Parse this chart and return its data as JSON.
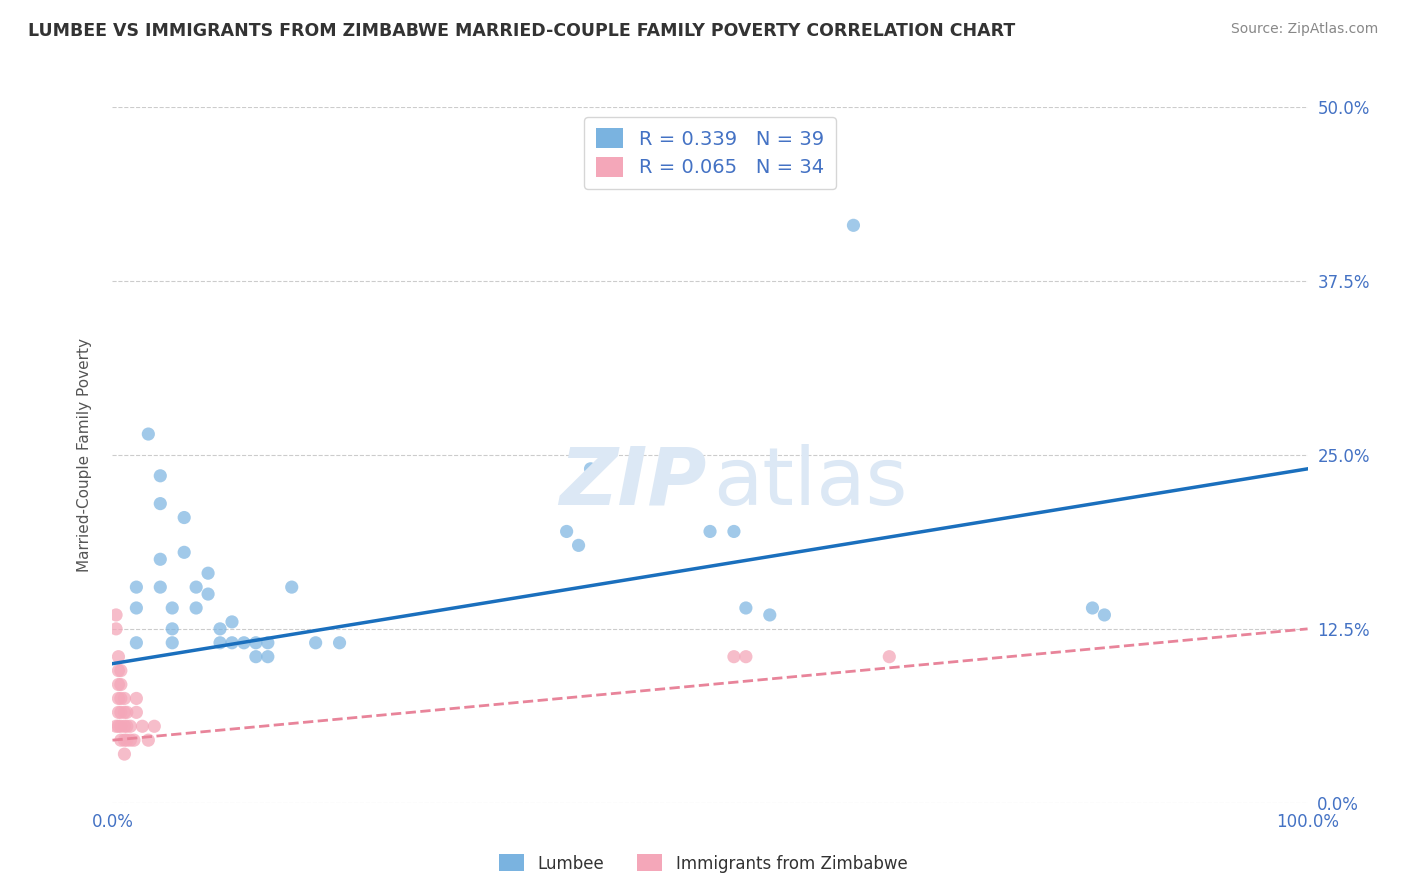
{
  "title": "LUMBEE VS IMMIGRANTS FROM ZIMBABWE MARRIED-COUPLE FAMILY POVERTY CORRELATION CHART",
  "source_text": "Source: ZipAtlas.com",
  "ylabel": "Married-Couple Family Poverty",
  "xlim": [
    0,
    1.0
  ],
  "ylim": [
    0,
    0.5
  ],
  "xticks": [
    0.0,
    0.25,
    0.5,
    0.75,
    1.0
  ],
  "xtick_labels": [
    "0.0%",
    "",
    "",
    "",
    "100.0%"
  ],
  "ytick_labels": [
    "0.0%",
    "12.5%",
    "25.0%",
    "37.5%",
    "50.0%"
  ],
  "yticks": [
    0.0,
    0.125,
    0.25,
    0.375,
    0.5
  ],
  "grid_color": "#cccccc",
  "lumbee_color": "#7ab3e0",
  "zimbabwe_color": "#f4a7b9",
  "lumbee_line_color": "#1a6fbd",
  "zimbabwe_line_color": "#e8849a",
  "lumbee_R": 0.339,
  "lumbee_N": 39,
  "zimbabwe_R": 0.065,
  "zimbabwe_N": 34,
  "lumbee_scatter": [
    [
      0.02,
      0.155
    ],
    [
      0.02,
      0.14
    ],
    [
      0.03,
      0.265
    ],
    [
      0.04,
      0.235
    ],
    [
      0.04,
      0.215
    ],
    [
      0.04,
      0.175
    ],
    [
      0.04,
      0.155
    ],
    [
      0.05,
      0.14
    ],
    [
      0.05,
      0.125
    ],
    [
      0.05,
      0.115
    ],
    [
      0.06,
      0.205
    ],
    [
      0.06,
      0.18
    ],
    [
      0.07,
      0.155
    ],
    [
      0.07,
      0.14
    ],
    [
      0.08,
      0.165
    ],
    [
      0.08,
      0.15
    ],
    [
      0.09,
      0.125
    ],
    [
      0.09,
      0.115
    ],
    [
      0.1,
      0.13
    ],
    [
      0.1,
      0.115
    ],
    [
      0.11,
      0.115
    ],
    [
      0.12,
      0.115
    ],
    [
      0.12,
      0.105
    ],
    [
      0.13,
      0.115
    ],
    [
      0.13,
      0.105
    ],
    [
      0.15,
      0.155
    ],
    [
      0.17,
      0.115
    ],
    [
      0.19,
      0.115
    ],
    [
      0.38,
      0.195
    ],
    [
      0.39,
      0.185
    ],
    [
      0.4,
      0.24
    ],
    [
      0.5,
      0.195
    ],
    [
      0.52,
      0.195
    ],
    [
      0.53,
      0.14
    ],
    [
      0.55,
      0.135
    ],
    [
      0.62,
      0.415
    ],
    [
      0.82,
      0.14
    ],
    [
      0.83,
      0.135
    ],
    [
      0.02,
      0.115
    ]
  ],
  "zimbabwe_scatter": [
    [
      0.003,
      0.135
    ],
    [
      0.003,
      0.125
    ],
    [
      0.005,
      0.105
    ],
    [
      0.005,
      0.095
    ],
    [
      0.005,
      0.085
    ],
    [
      0.005,
      0.075
    ],
    [
      0.005,
      0.065
    ],
    [
      0.005,
      0.055
    ],
    [
      0.007,
      0.095
    ],
    [
      0.007,
      0.085
    ],
    [
      0.007,
      0.075
    ],
    [
      0.007,
      0.065
    ],
    [
      0.007,
      0.055
    ],
    [
      0.007,
      0.045
    ],
    [
      0.01,
      0.075
    ],
    [
      0.01,
      0.065
    ],
    [
      0.01,
      0.055
    ],
    [
      0.01,
      0.045
    ],
    [
      0.01,
      0.035
    ],
    [
      0.012,
      0.065
    ],
    [
      0.012,
      0.055
    ],
    [
      0.012,
      0.045
    ],
    [
      0.015,
      0.055
    ],
    [
      0.015,
      0.045
    ],
    [
      0.018,
      0.045
    ],
    [
      0.02,
      0.075
    ],
    [
      0.02,
      0.065
    ],
    [
      0.025,
      0.055
    ],
    [
      0.03,
      0.045
    ],
    [
      0.035,
      0.055
    ],
    [
      0.52,
      0.105
    ],
    [
      0.53,
      0.105
    ],
    [
      0.65,
      0.105
    ],
    [
      0.003,
      0.055
    ]
  ],
  "background_color": "#ffffff",
  "title_color": "#333333",
  "axis_label_color": "#555555",
  "tick_color": "#4472c4",
  "source_color": "#888888",
  "watermark_zip_color": "#ddeeff",
  "watermark_atlas_color": "#ddeeff"
}
